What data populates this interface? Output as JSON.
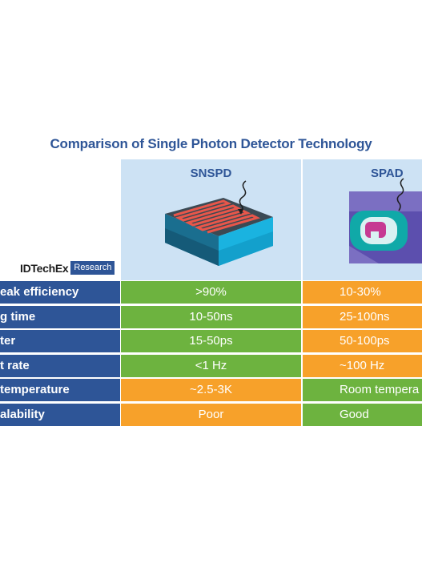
{
  "title": "Comparison of Single Photon Detector Technology",
  "columns": [
    {
      "name": "SNSPD"
    },
    {
      "name": "SPAD"
    }
  ],
  "brand": {
    "name": "IDTechEx",
    "tag": "Research"
  },
  "colors": {
    "green": "#6db33f",
    "orange": "#f7a12a",
    "blue": "#2e5597",
    "header_bg": "#cde2f4"
  },
  "rows": [
    {
      "label": "eak efficiency",
      "snspd": ">90%",
      "snspd_color": "green",
      "spad": "10-30%",
      "spad_color": "orange"
    },
    {
      "label": "g time",
      "snspd": "10-50ns",
      "snspd_color": "green",
      "spad": "25-100ns",
      "spad_color": "orange"
    },
    {
      "label": "ter",
      "snspd": "15-50ps",
      "snspd_color": "green",
      "spad": "50-100ps",
      "spad_color": "orange"
    },
    {
      "label": "t rate",
      "snspd": "<1 Hz",
      "snspd_color": "green",
      "spad": "~100 Hz",
      "spad_color": "orange"
    },
    {
      "label": "temperature",
      "snspd": "~2.5-3K",
      "snspd_color": "orange",
      "spad": "Room tempera",
      "spad_color": "green"
    },
    {
      "label": "alability",
      "snspd": "Poor",
      "snspd_color": "orange",
      "spad": "Good",
      "spad_color": "green"
    }
  ]
}
